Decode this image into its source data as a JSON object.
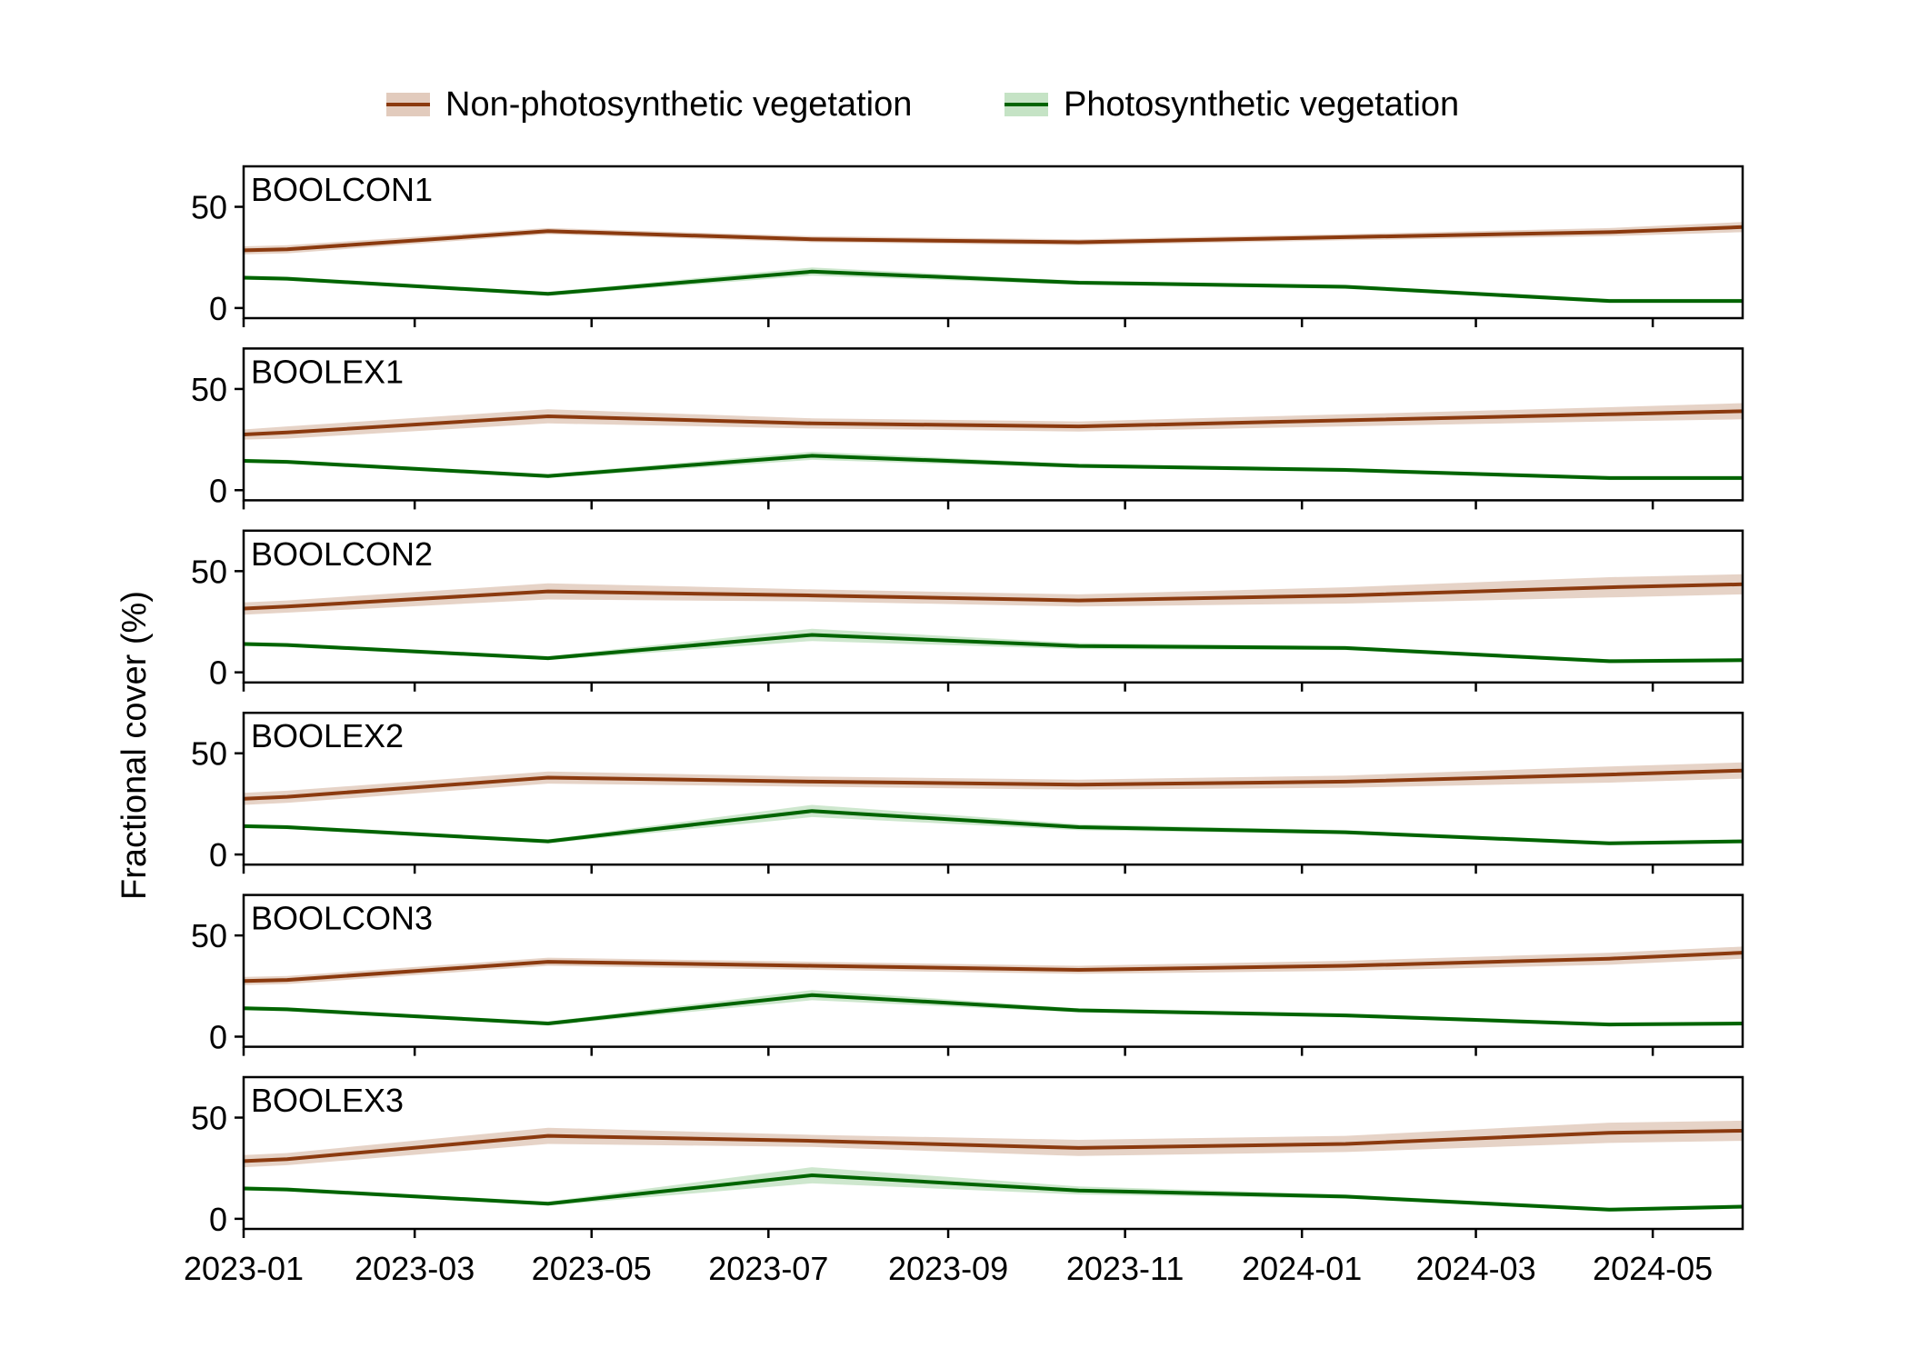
{
  "chart_data": {
    "type": "line",
    "ylabel": "Fractional cover (%)",
    "xlabel": "",
    "xlim": [
      "2023-01-01",
      "2024-06-01"
    ],
    "ylim": [
      -5,
      70
    ],
    "y_ticks": [
      0,
      50
    ],
    "x_ticks": [
      "2023-01",
      "2023-03",
      "2023-05",
      "2023-07",
      "2023-09",
      "2023-11",
      "2024-01",
      "2024-03",
      "2024-05"
    ],
    "legend": {
      "placement": "top-center",
      "entries": [
        "Non-photosynthetic vegetation",
        "Photosynthetic vegetation"
      ]
    },
    "colors": {
      "npv_line": "#8b3a0f",
      "npv_band": "#e2cbbd",
      "pv_line": "#006400",
      "pv_band": "#c5e3c5",
      "axis": "#000000"
    },
    "grid": false,
    "x": [
      "2023-01-01",
      "2023-01-16",
      "2023-04-16",
      "2023-07-16",
      "2023-10-16",
      "2024-01-16",
      "2024-04-16",
      "2024-06-01"
    ],
    "panels": [
      {
        "name": "BOOLCON1",
        "series": [
          {
            "name": "Non-photosynthetic vegetation",
            "values": [
              28.5,
              29,
              38,
              34,
              32.5,
              35,
              37.5,
              40
            ],
            "band": [
              2,
              2,
              1.5,
              1.5,
              1.5,
              1.5,
              2,
              2.5
            ]
          },
          {
            "name": "Photosynthetic vegetation",
            "values": [
              15,
              14.5,
              7,
              18,
              12.5,
              10.5,
              3.5,
              3.5
            ],
            "band": [
              1,
              1,
              1,
              2,
              1,
              1,
              1,
              1
            ]
          }
        ]
      },
      {
        "name": "BOOLEX1",
        "series": [
          {
            "name": "Non-photosynthetic vegetation",
            "values": [
              27.5,
              28.5,
              36.5,
              33,
              31.5,
              34.5,
              37.5,
              39
            ],
            "band": [
              2.5,
              3,
              3.5,
              2.5,
              2.5,
              3,
              3.5,
              4
            ]
          },
          {
            "name": "Photosynthetic vegetation",
            "values": [
              14.5,
              14,
              7,
              17,
              12,
              10,
              6,
              6
            ],
            "band": [
              1,
              1,
              1,
              2,
              1,
              1,
              1,
              1
            ]
          }
        ]
      },
      {
        "name": "BOOLCON2",
        "series": [
          {
            "name": "Non-photosynthetic vegetation",
            "values": [
              31.5,
              32.5,
              40,
              38,
              35.5,
              38,
              42,
              43.5
            ],
            "band": [
              3,
              3,
              4,
              3,
              3,
              4,
              5,
              5
            ]
          },
          {
            "name": "Photosynthetic vegetation",
            "values": [
              14,
              13.5,
              7,
              18.5,
              13,
              12,
              5.5,
              6
            ],
            "band": [
              1,
              1,
              1,
              3,
              1.5,
              1,
              1,
              1
            ]
          }
        ]
      },
      {
        "name": "BOOLEX2",
        "series": [
          {
            "name": "Non-photosynthetic vegetation",
            "values": [
              27.5,
              28.5,
              38,
              36,
              34.5,
              36,
              39.5,
              41.5
            ],
            "band": [
              3,
              3,
              3,
              2.5,
              2.5,
              3,
              4,
              4
            ]
          },
          {
            "name": "Photosynthetic vegetation",
            "values": [
              14,
              13.5,
              6.5,
              21.5,
              13.5,
              11,
              5.5,
              6.5
            ],
            "band": [
              1,
              1,
              1,
              3,
              1.5,
              1,
              1,
              1
            ]
          }
        ]
      },
      {
        "name": "BOOLCON3",
        "series": [
          {
            "name": "Non-photosynthetic vegetation",
            "values": [
              27.5,
              28,
              37,
              35,
              33,
              35,
              38.5,
              41.5
            ],
            "band": [
              2,
              2,
              2,
              2,
              2,
              2.5,
              3,
              3
            ]
          },
          {
            "name": "Photosynthetic vegetation",
            "values": [
              14,
              13.5,
              6.5,
              20.5,
              13,
              10.5,
              6,
              6.5
            ],
            "band": [
              1,
              1,
              1,
              2.5,
              1,
              1,
              1,
              1
            ]
          }
        ]
      },
      {
        "name": "BOOLEX3",
        "series": [
          {
            "name": "Non-photosynthetic vegetation",
            "values": [
              28.5,
              29.5,
              41,
              38.5,
              35,
              37,
              42.5,
              43.5
            ],
            "band": [
              3,
              3,
              4,
              3,
              4,
              4,
              5,
              5
            ]
          },
          {
            "name": "Photosynthetic vegetation",
            "values": [
              15,
              14.5,
              7.5,
              21.5,
              14,
              11,
              4.5,
              6
            ],
            "band": [
              1,
              1,
              1,
              4,
              2,
              1,
              1,
              1
            ]
          }
        ]
      }
    ]
  }
}
